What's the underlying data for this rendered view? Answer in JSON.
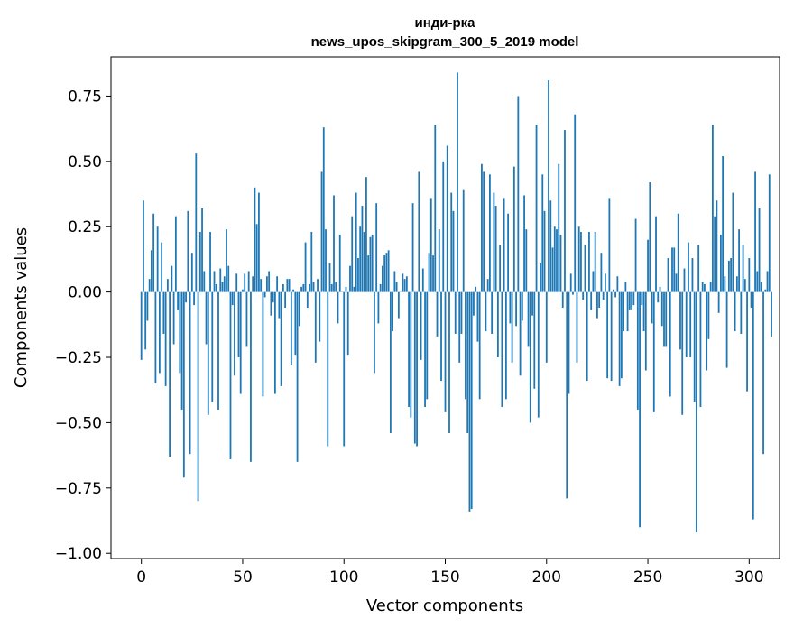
{
  "chart_data": {
    "type": "bar",
    "title_line1": "инди-рка",
    "title_line2": "news_upos_skipgram_300_5_2019 model",
    "xlabel": "Vector components",
    "ylabel": "Components values",
    "xlim": [
      -15,
      315
    ],
    "ylim": [
      -1.02,
      0.9
    ],
    "xticks": [
      0,
      50,
      100,
      150,
      200,
      250,
      300
    ],
    "xtick_labels": [
      "0",
      "50",
      "100",
      "150",
      "200",
      "250",
      "300"
    ],
    "yticks": [
      -1.0,
      -0.75,
      -0.5,
      -0.25,
      0.0,
      0.25,
      0.5,
      0.75
    ],
    "ytick_labels": [
      "−1.00",
      "−0.75",
      "−0.50",
      "−0.25",
      "0.00",
      "0.25",
      "0.50",
      "0.75"
    ],
    "grid": false,
    "bar_color": "#1f77b4",
    "values": [
      -0.26,
      0.35,
      -0.22,
      -0.11,
      0.05,
      0.16,
      0.3,
      -0.35,
      0.25,
      -0.31,
      0.19,
      -0.16,
      -0.36,
      0.05,
      -0.63,
      0.1,
      -0.2,
      0.29,
      -0.07,
      -0.31,
      -0.45,
      -0.71,
      -0.04,
      0.31,
      -0.62,
      0.15,
      -0.05,
      0.53,
      -0.8,
      0.23,
      0.32,
      0.08,
      -0.2,
      -0.47,
      0.23,
      -0.42,
      0.08,
      0.03,
      -0.45,
      0.09,
      0.04,
      0.06,
      0.24,
      0.1,
      -0.64,
      -0.05,
      -0.32,
      0.07,
      -0.25,
      -0.39,
      0.01,
      0.07,
      -0.21,
      0.08,
      -0.65,
      0.06,
      0.4,
      0.26,
      0.38,
      0.05,
      -0.4,
      -0.02,
      0.06,
      0.08,
      -0.09,
      -0.04,
      -0.39,
      0.06,
      -0.1,
      -0.36,
      0.03,
      -0.06,
      0.05,
      0.05,
      -0.28,
      0.01,
      -0.24,
      -0.65,
      -0.13,
      0.02,
      0.03,
      0.19,
      -0.06,
      0.03,
      0.23,
      0.04,
      -0.27,
      0.05,
      -0.19,
      0.46,
      0.63,
      0.24,
      -0.59,
      0.11,
      0.03,
      0.37,
      0.04,
      -0.12,
      0.22,
      0.0,
      -0.59,
      0.02,
      -0.24,
      0.1,
      0.29,
      0.02,
      0.38,
      0.13,
      0.25,
      0.33,
      0.23,
      0.44,
      0.14,
      0.21,
      0.22,
      -0.31,
      0.34,
      -0.12,
      0.03,
      0.1,
      0.14,
      0.15,
      0.16,
      -0.54,
      -0.15,
      0.08,
      0.04,
      -0.1,
      0.0,
      0.07,
      0.05,
      0.06,
      -0.44,
      -0.48,
      0.34,
      -0.58,
      -0.59,
      0.46,
      -0.26,
      0.09,
      -0.44,
      -0.41,
      0.15,
      0.36,
      0.14,
      0.64,
      -0.17,
      0.24,
      -0.34,
      0.5,
      -0.46,
      0.56,
      -0.54,
      0.38,
      0.31,
      -0.16,
      0.84,
      -0.27,
      -0.16,
      0.39,
      -0.41,
      -0.54,
      -0.84,
      -0.83,
      -0.09,
      0.02,
      -0.19,
      -0.41,
      0.49,
      0.46,
      -0.15,
      0.05,
      0.45,
      -0.16,
      0.38,
      0.33,
      -0.25,
      0.18,
      -0.44,
      0.36,
      -0.41,
      0.3,
      -0.12,
      -0.27,
      0.48,
      -0.13,
      0.75,
      -0.32,
      -0.11,
      0.37,
      0.24,
      -0.21,
      -0.5,
      -0.09,
      -0.37,
      0.64,
      -0.48,
      0.11,
      0.45,
      0.31,
      -0.27,
      0.81,
      0.35,
      0.17,
      0.25,
      0.24,
      0.49,
      0.22,
      -0.06,
      0.62,
      -0.79,
      -0.39,
      0.07,
      -0.01,
      0.68,
      -0.27,
      0.25,
      0.23,
      -0.03,
      0.18,
      -0.34,
      0.23,
      -0.07,
      0.08,
      0.23,
      -0.1,
      -0.06,
      0.15,
      -0.03,
      0.07,
      -0.33,
      0.36,
      -0.34,
      0.01,
      -0.02,
      0.06,
      -0.36,
      -0.33,
      -0.15,
      0.04,
      -0.15,
      -0.07,
      -0.07,
      -0.05,
      0.28,
      -0.45,
      -0.9,
      -0.05,
      -0.15,
      -0.3,
      0.2,
      0.42,
      -0.12,
      -0.46,
      0.29,
      -0.04,
      0.02,
      -0.13,
      -0.21,
      -0.21,
      0.13,
      -0.4,
      0.17,
      0.17,
      0.07,
      0.3,
      -0.22,
      -0.47,
      0.09,
      -0.25,
      0.19,
      -0.25,
      0.13,
      -0.42,
      -0.92,
      0.18,
      -0.44,
      0.04,
      0.03,
      -0.3,
      -0.18,
      0.04,
      0.64,
      0.29,
      0.35,
      -0.08,
      0.22,
      0.52,
      0.06,
      -0.29,
      0.12,
      0.13,
      0.38,
      -0.15,
      0.06,
      0.24,
      -0.16,
      0.18,
      0.05,
      -0.38,
      0.13,
      -0.06,
      -0.87,
      0.46,
      0.08,
      0.32,
      0.04,
      -0.62,
      0.01,
      0.08,
      0.45,
      -0.17
    ]
  }
}
